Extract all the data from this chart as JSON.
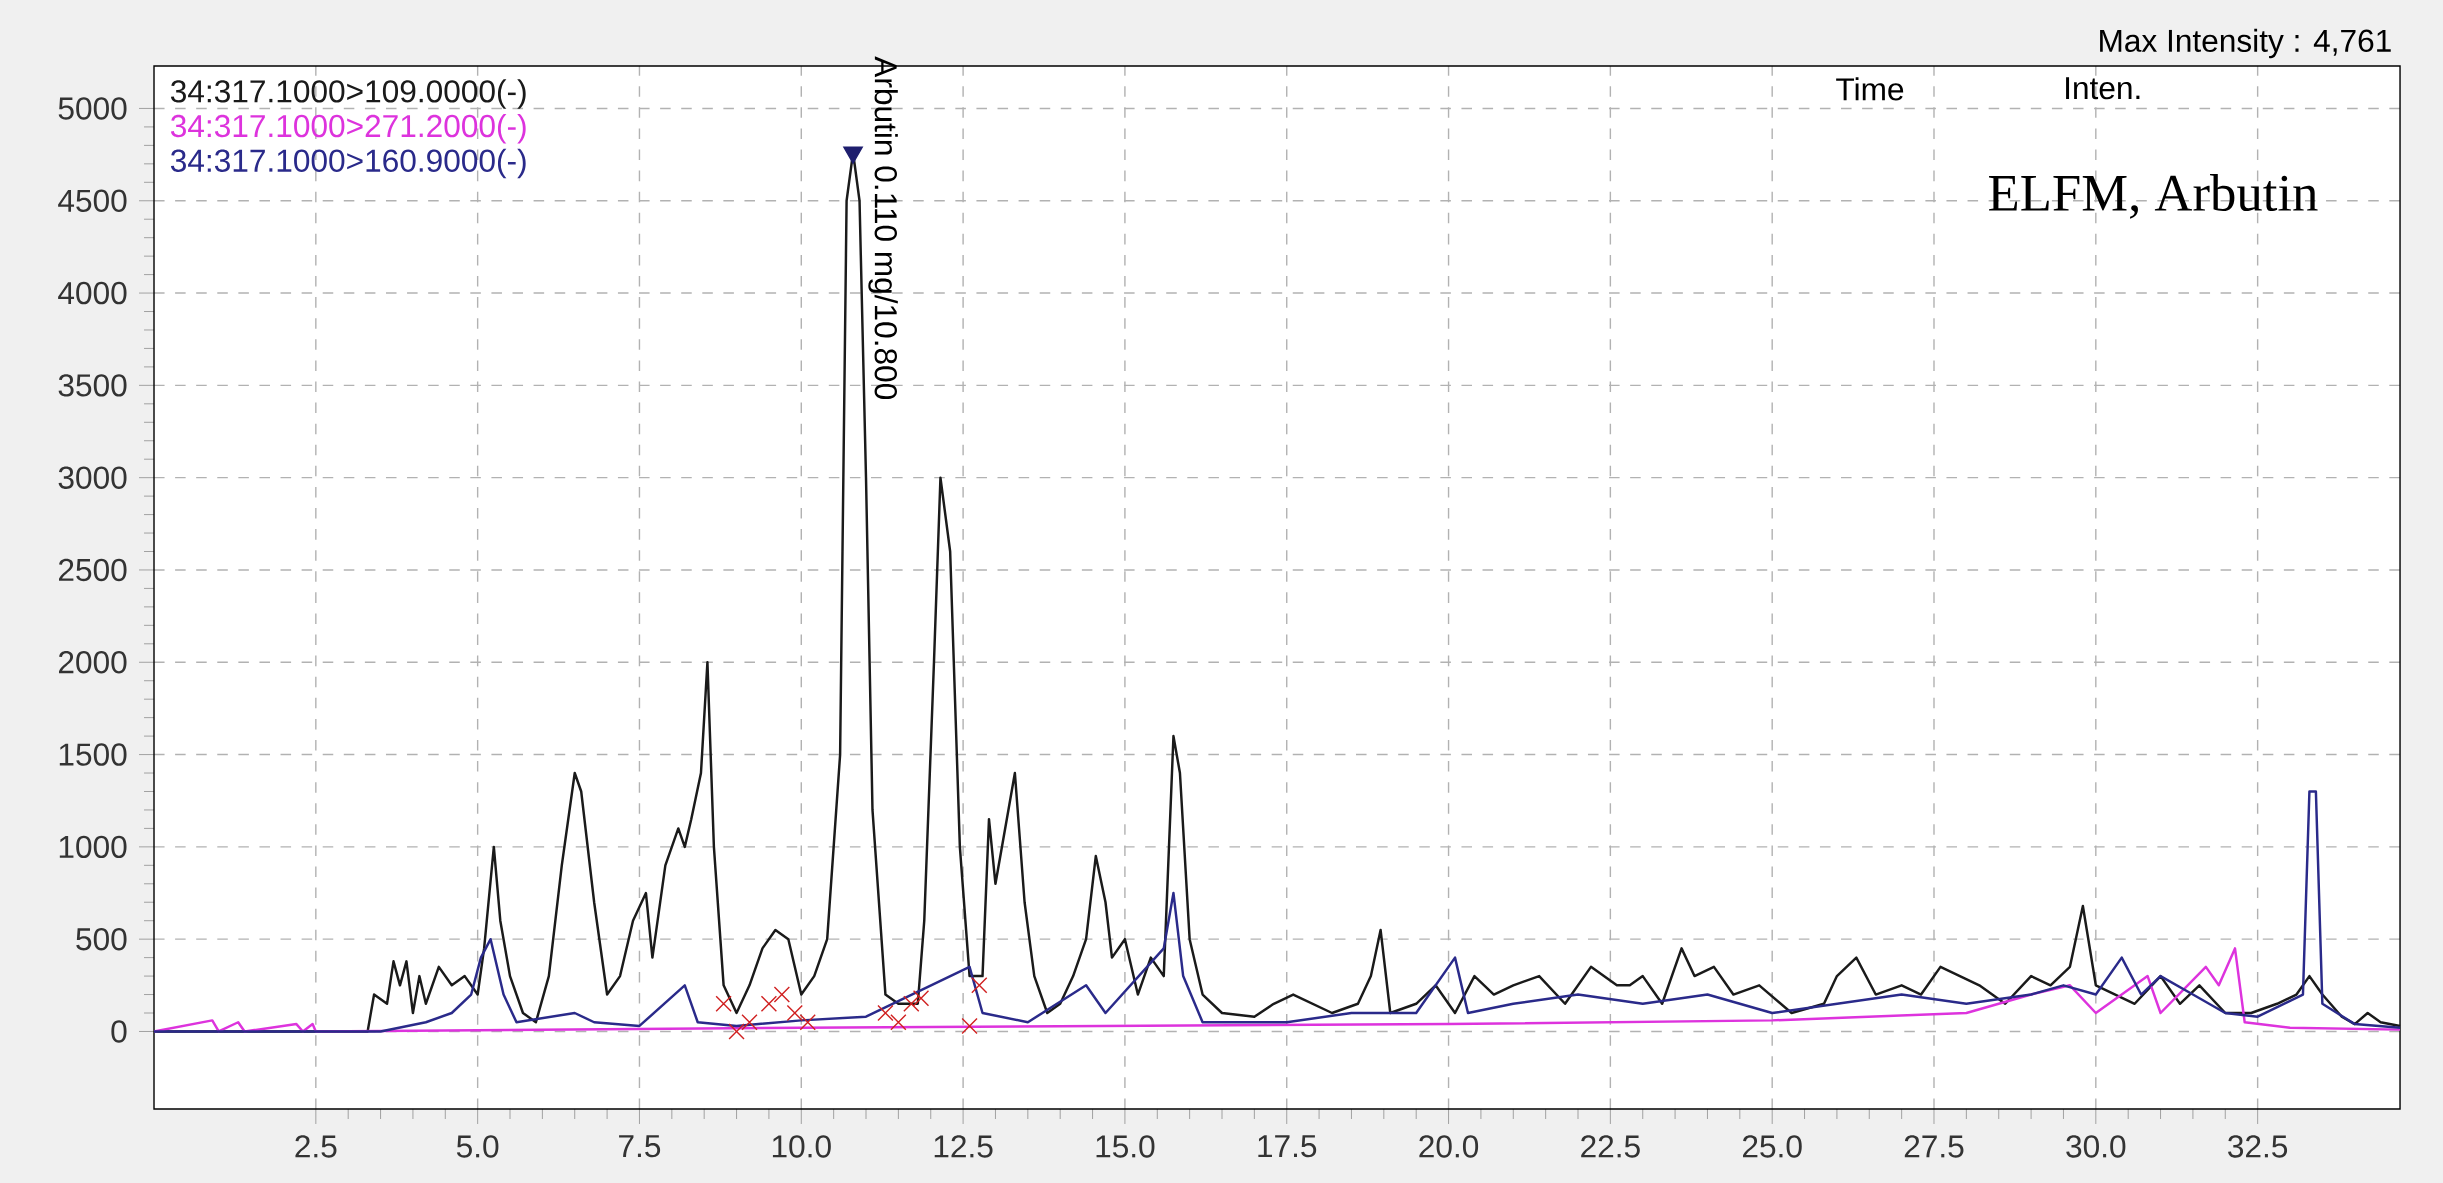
{
  "chart_data": {
    "type": "line",
    "annotations": [
      "Max Intensity :   4,761",
      "Time",
      "Inten.",
      "ELFM, Arbutin",
      {
        "text": "Arbutin 0.110 mg/10.800",
        "x": 10.8,
        "y": 4761
      }
    ],
    "series": [
      {
        "color": "#1e1e6e",
        "type": "scatter",
        "marker": "triangle",
        "x": [
          10.8
        ],
        "values": [
          4761
        ]
      },
      {
        "name": "34:317.1000>109.0000(-)",
        "color": "#1a1a1a",
        "x": [
          0,
          3.3,
          3.4,
          3.6,
          3.7,
          3.8,
          3.9,
          4.0,
          4.1,
          4.2,
          4.4,
          4.6,
          4.8,
          5.0,
          5.1,
          5.25,
          5.35,
          5.5,
          5.7,
          5.9,
          6.1,
          6.3,
          6.5,
          6.6,
          6.8,
          7.0,
          7.2,
          7.4,
          7.6,
          7.7,
          7.9,
          8.1,
          8.2,
          8.3,
          8.45,
          8.55,
          8.65,
          8.8,
          9.0,
          9.2,
          9.4,
          9.6,
          9.8,
          10.0,
          10.2,
          10.4,
          10.6,
          10.7,
          10.8,
          10.9,
          11.0,
          11.1,
          11.3,
          11.5,
          11.8,
          11.9,
          12.05,
          12.15,
          12.3,
          12.45,
          12.6,
          12.8,
          12.9,
          13.0,
          13.2,
          13.3,
          13.45,
          13.6,
          13.8,
          14.0,
          14.2,
          14.4,
          14.55,
          14.7,
          14.8,
          15.0,
          15.2,
          15.4,
          15.6,
          15.75,
          15.85,
          16.0,
          16.2,
          16.5,
          17.0,
          17.3,
          17.6,
          17.9,
          18.2,
          18.6,
          18.8,
          18.95,
          19.1,
          19.5,
          19.8,
          20.1,
          20.4,
          20.7,
          21.0,
          21.4,
          21.8,
          22.2,
          22.6,
          22.8,
          23.0,
          23.3,
          23.6,
          23.8,
          24.1,
          24.4,
          24.8,
          25.3,
          25.8,
          26.0,
          26.3,
          26.6,
          27.0,
          27.3,
          27.6,
          27.9,
          28.2,
          28.6,
          29.0,
          29.3,
          29.6,
          29.8,
          30.0,
          30.3,
          30.6,
          31.0,
          31.3,
          31.6,
          32.0,
          32.4,
          32.8,
          33.1,
          33.3,
          33.5,
          33.8,
          34.0,
          34.2,
          34.4,
          34.7
        ],
        "values": [
          0,
          0,
          200,
          150,
          380,
          250,
          380,
          100,
          300,
          150,
          350,
          250,
          300,
          200,
          450,
          1000,
          600,
          300,
          100,
          50,
          300,
          900,
          1400,
          1300,
          700,
          200,
          300,
          600,
          750,
          400,
          900,
          1100,
          1000,
          1150,
          1400,
          2000,
          1000,
          250,
          100,
          250,
          450,
          550,
          500,
          200,
          300,
          500,
          1500,
          4500,
          4761,
          4500,
          3000,
          1200,
          200,
          150,
          150,
          600,
          2000,
          3000,
          2600,
          1000,
          300,
          300,
          1150,
          800,
          1200,
          1400,
          700,
          300,
          100,
          150,
          300,
          500,
          950,
          700,
          400,
          500,
          200,
          400,
          300,
          1600,
          1400,
          500,
          200,
          100,
          80,
          150,
          200,
          150,
          100,
          150,
          300,
          550,
          100,
          150,
          250,
          100,
          300,
          200,
          250,
          300,
          150,
          350,
          250,
          250,
          300,
          150,
          450,
          300,
          350,
          200,
          250,
          100,
          150,
          300,
          400,
          200,
          250,
          200,
          350,
          300,
          250,
          150,
          300,
          250,
          350,
          680,
          250,
          200,
          150,
          300,
          150,
          250,
          100,
          100,
          150,
          200,
          300,
          200,
          80,
          40,
          100,
          50,
          30
        ]
      },
      {
        "name": "34:317.1000>271.2000(-)",
        "color": "#dd33dd",
        "x": [
          0,
          0.9,
          1.0,
          1.3,
          1.4,
          2.2,
          2.3,
          2.45,
          2.5,
          10,
          20,
          25,
          28,
          29,
          29.6,
          30,
          30.8,
          31.0,
          31.7,
          31.9,
          32.15,
          32.3,
          33,
          34.7
        ],
        "values": [
          0,
          60,
          0,
          50,
          0,
          40,
          0,
          40,
          0,
          20,
          40,
          60,
          100,
          200,
          250,
          100,
          300,
          100,
          350,
          250,
          450,
          50,
          20,
          10
        ]
      },
      {
        "name": "34:317.1000>160.9000(-)",
        "color": "#2a2a8a",
        "x": [
          0,
          3.5,
          4.2,
          4.6,
          4.9,
          5.05,
          5.2,
          5.4,
          5.6,
          6.5,
          6.8,
          7.5,
          8.2,
          8.4,
          9,
          10,
          11,
          12.6,
          12.8,
          13.5,
          14.4,
          14.7,
          15.6,
          15.75,
          15.9,
          16.2,
          17.5,
          18.5,
          19.5,
          20.1,
          20.3,
          21,
          22,
          23,
          24,
          25,
          26,
          27,
          28,
          29,
          29.5,
          30,
          30.4,
          30.7,
          31,
          31.5,
          32,
          32.5,
          33.2,
          33.3,
          33.4,
          33.5,
          34,
          34.7
        ],
        "values": [
          0,
          0,
          50,
          100,
          200,
          400,
          500,
          200,
          50,
          100,
          50,
          30,
          250,
          50,
          30,
          60,
          80,
          350,
          100,
          50,
          250,
          100,
          450,
          750,
          300,
          50,
          50,
          100,
          100,
          400,
          100,
          150,
          200,
          150,
          200,
          100,
          150,
          200,
          150,
          200,
          250,
          200,
          400,
          200,
          300,
          200,
          100,
          80,
          200,
          1300,
          1300,
          150,
          40,
          20
        ]
      },
      {
        "color": "#d02020",
        "type": "scatter",
        "marker": "cross",
        "x": [
          8.8,
          9.0,
          9.2,
          9.5,
          9.7,
          9.9,
          10.1,
          11.3,
          11.5,
          11.7,
          11.85,
          12.6,
          12.75
        ],
        "values": [
          150,
          0,
          50,
          150,
          200,
          100,
          50,
          100,
          50,
          150,
          180,
          30,
          250
        ]
      }
    ],
    "marker": "none",
    "xlim": [
      0,
      34.7
    ],
    "ylim": [
      -420,
      5230
    ],
    "xticks": [
      {
        "value": 2.5,
        "label": "2.5"
      },
      {
        "value": 5,
        "label": "5.0"
      },
      {
        "value": 7.5,
        "label": "7.5"
      },
      {
        "value": 10,
        "label": "10.0"
      },
      {
        "value": 12.5,
        "label": "12.5"
      },
      {
        "value": 15,
        "label": "15.0"
      },
      {
        "value": 17.5,
        "label": "17.5"
      },
      {
        "value": 20,
        "label": "20.0"
      },
      {
        "value": 22.5,
        "label": "22.5"
      },
      {
        "value": 25,
        "label": "25.0"
      },
      {
        "value": 27.5,
        "label": "27.5"
      },
      {
        "value": 30,
        "label": "30.0"
      },
      {
        "value": 32.5,
        "label": "32.5"
      }
    ],
    "yticks": [
      0,
      500,
      1000,
      1500,
      2000,
      2500,
      3000,
      3500,
      4000,
      4500,
      5000
    ],
    "grid": true,
    "legend": "top left"
  }
}
